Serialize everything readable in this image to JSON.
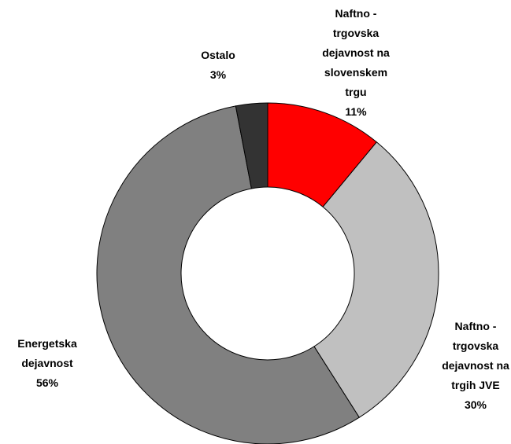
{
  "chart_data": {
    "type": "donut",
    "categories": [
      "Naftno -\ntrgovska\ndejavnost na\nslovenskem\ntrgu",
      "Naftno -\ntrgovska\ndejavnost na\ntrgih JVE",
      "Energetska\ndejavnost",
      "Ostalo"
    ],
    "values": [
      11,
      30,
      56,
      3
    ],
    "value_labels": [
      "11%",
      "30%",
      "56%",
      "3%"
    ],
    "colors": [
      "#ff0000",
      "#c0c0c0",
      "#808080",
      "#333333"
    ]
  }
}
